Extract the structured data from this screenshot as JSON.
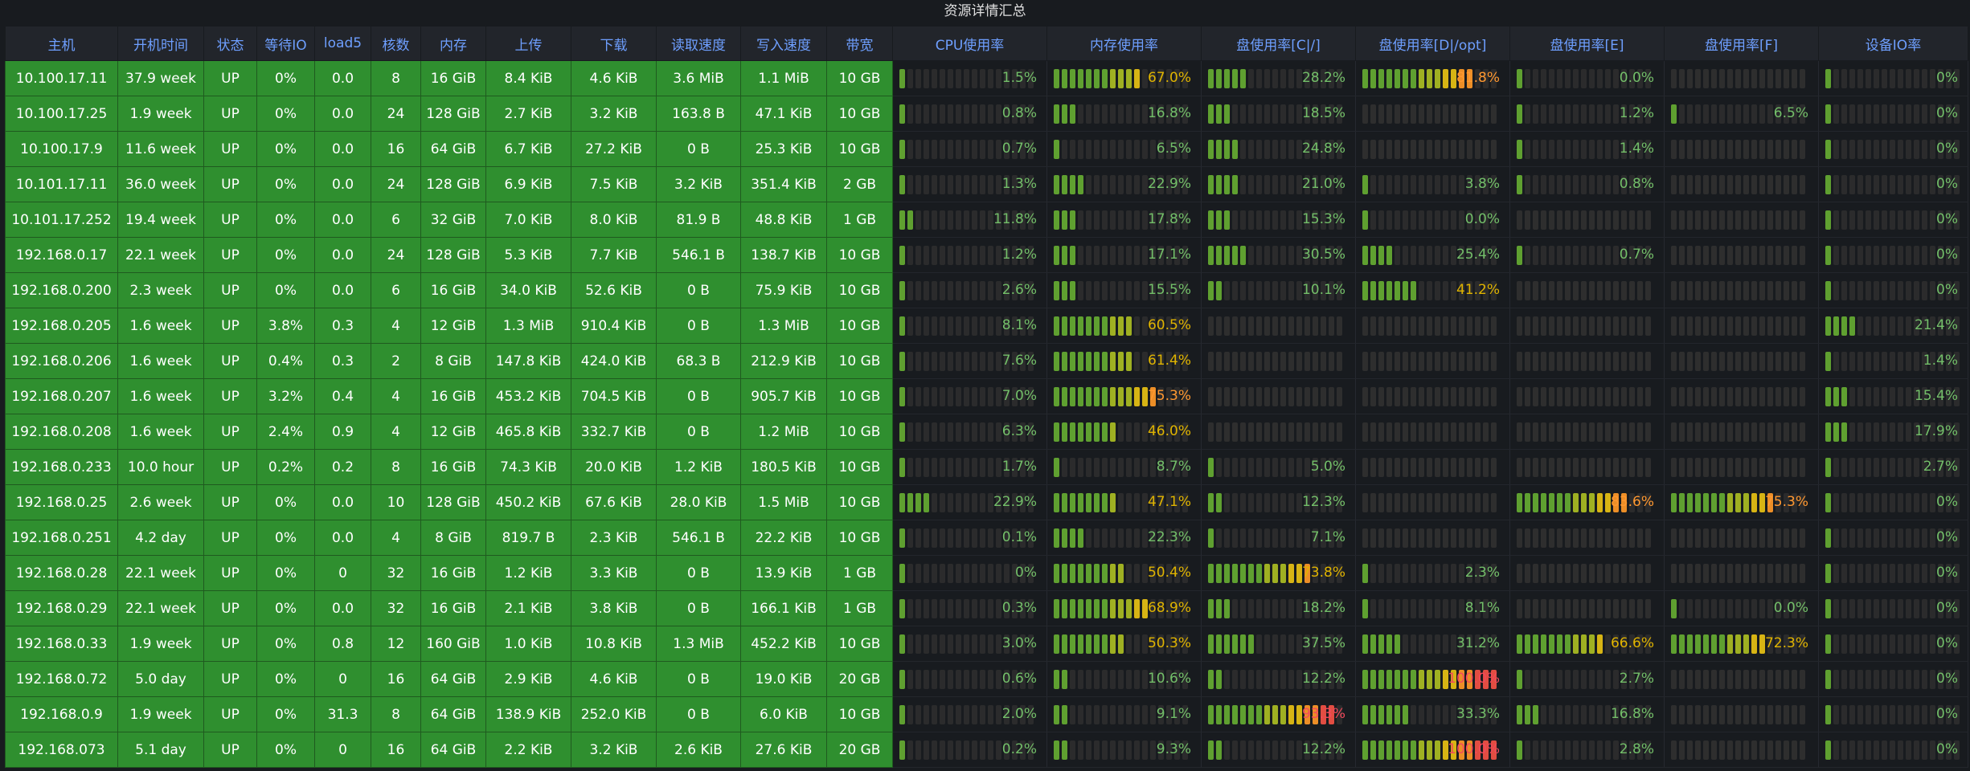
{
  "panel": {
    "title": "资源详情汇总"
  },
  "columns": [
    "主机",
    "开机时间",
    "状态",
    "等待IO",
    "load5",
    "核数",
    "内存",
    "上传",
    "下载",
    "读取速度",
    "写入速度",
    "带宽",
    "CPU使用率",
    "内存使用率",
    "盘使用率[C|/]",
    "盘使用率[D|/opt]",
    "盘使用率[E]",
    "盘使用率[F]",
    "设备IO率"
  ],
  "rows": [
    {
      "host": "10.100.17.11",
      "uptime": "37.9 week",
      "status": "UP",
      "iowait": "0%",
      "load5": "0.0",
      "cores": "8",
      "memory": "16 GiB",
      "upload": "8.4 KiB",
      "download": "4.6 KiB",
      "read": "3.6 MiB",
      "write": "1.1 MiB",
      "bandwidth": "10 GB",
      "cpu": "1.5%",
      "mem": "67.0%",
      "diskC": "28.2%",
      "diskD": "81.8%",
      "diskE": "0.0%",
      "diskF": "",
      "io": "0%"
    },
    {
      "host": "10.100.17.25",
      "uptime": "1.9 week",
      "status": "UP",
      "iowait": "0%",
      "load5": "0.0",
      "cores": "24",
      "memory": "128 GiB",
      "upload": "2.7 KiB",
      "download": "3.2 KiB",
      "read": "163.8 B",
      "write": "47.1 KiB",
      "bandwidth": "10 GB",
      "cpu": "0.8%",
      "mem": "16.8%",
      "diskC": "18.5%",
      "diskD": "",
      "diskE": "1.2%",
      "diskF": "6.5%",
      "io": "0%"
    },
    {
      "host": "10.100.17.9",
      "uptime": "11.6 week",
      "status": "UP",
      "iowait": "0%",
      "load5": "0.0",
      "cores": "16",
      "memory": "64 GiB",
      "upload": "6.7 KiB",
      "download": "27.2 KiB",
      "read": "0 B",
      "write": "25.3 KiB",
      "bandwidth": "10 GB",
      "cpu": "0.7%",
      "mem": "6.5%",
      "diskC": "24.8%",
      "diskD": "",
      "diskE": "1.4%",
      "diskF": "",
      "io": "0%"
    },
    {
      "host": "10.101.17.11",
      "uptime": "36.0 week",
      "status": "UP",
      "iowait": "0%",
      "load5": "0.0",
      "cores": "24",
      "memory": "128 GiB",
      "upload": "6.9 KiB",
      "download": "7.5 KiB",
      "read": "3.2 KiB",
      "write": "351.4 KiB",
      "bandwidth": "2 GB",
      "cpu": "1.3%",
      "mem": "22.9%",
      "diskC": "21.0%",
      "diskD": "3.8%",
      "diskE": "0.8%",
      "diskF": "",
      "io": "0%"
    },
    {
      "host": "10.101.17.252",
      "uptime": "19.4 week",
      "status": "UP",
      "iowait": "0%",
      "load5": "0.0",
      "cores": "6",
      "memory": "32 GiB",
      "upload": "7.0 KiB",
      "download": "8.0 KiB",
      "read": "81.9 B",
      "write": "48.8 KiB",
      "bandwidth": "1 GB",
      "cpu": "11.8%",
      "mem": "17.8%",
      "diskC": "15.3%",
      "diskD": "0.0%",
      "diskE": "",
      "diskF": "",
      "io": "0%"
    },
    {
      "host": "192.168.0.17",
      "uptime": "22.1 week",
      "status": "UP",
      "iowait": "0%",
      "load5": "0.0",
      "cores": "24",
      "memory": "128 GiB",
      "upload": "5.3 KiB",
      "download": "7.7 KiB",
      "read": "546.1 B",
      "write": "138.7 KiB",
      "bandwidth": "10 GB",
      "cpu": "1.2%",
      "mem": "17.1%",
      "diskC": "30.5%",
      "diskD": "25.4%",
      "diskE": "0.7%",
      "diskF": "",
      "io": "0%"
    },
    {
      "host": "192.168.0.200",
      "uptime": "2.3 week",
      "status": "UP",
      "iowait": "0%",
      "load5": "0.0",
      "cores": "6",
      "memory": "16 GiB",
      "upload": "34.0 KiB",
      "download": "52.6 KiB",
      "read": "0 B",
      "write": "75.9 KiB",
      "bandwidth": "10 GB",
      "cpu": "2.6%",
      "mem": "15.5%",
      "diskC": "10.1%",
      "diskD": "41.2%",
      "diskE": "",
      "diskF": "",
      "io": "0%"
    },
    {
      "host": "192.168.0.205",
      "uptime": "1.6 week",
      "status": "UP",
      "iowait": "3.8%",
      "load5": "0.3",
      "cores": "4",
      "memory": "12 GiB",
      "upload": "1.3 MiB",
      "download": "910.4 KiB",
      "read": "0 B",
      "write": "1.3 MiB",
      "bandwidth": "10 GB",
      "cpu": "8.1%",
      "mem": "60.5%",
      "diskC": "",
      "diskD": "",
      "diskE": "",
      "diskF": "",
      "io": "21.4%"
    },
    {
      "host": "192.168.0.206",
      "uptime": "1.6 week",
      "status": "UP",
      "iowait": "0.4%",
      "load5": "0.3",
      "cores": "2",
      "memory": "8 GiB",
      "upload": "147.8 KiB",
      "download": "424.0 KiB",
      "read": "68.3 B",
      "write": "212.9 KiB",
      "bandwidth": "10 GB",
      "cpu": "7.6%",
      "mem": "61.4%",
      "diskC": "",
      "diskD": "",
      "diskE": "",
      "diskF": "",
      "io": "1.4%"
    },
    {
      "host": "192.168.0.207",
      "uptime": "1.6 week",
      "status": "UP",
      "iowait": "3.2%",
      "load5": "0.4",
      "cores": "4",
      "memory": "16 GiB",
      "upload": "453.2 KiB",
      "download": "704.5 KiB",
      "read": "0 B",
      "write": "905.7 KiB",
      "bandwidth": "10 GB",
      "cpu": "7.0%",
      "mem": "75.3%",
      "diskC": "",
      "diskD": "",
      "diskE": "",
      "diskF": "",
      "io": "15.4%"
    },
    {
      "host": "192.168.0.208",
      "uptime": "1.6 week",
      "status": "UP",
      "iowait": "2.4%",
      "load5": "0.9",
      "cores": "4",
      "memory": "12 GiB",
      "upload": "465.8 KiB",
      "download": "332.7 KiB",
      "read": "0 B",
      "write": "1.2 MiB",
      "bandwidth": "10 GB",
      "cpu": "6.3%",
      "mem": "46.0%",
      "diskC": "",
      "diskD": "",
      "diskE": "",
      "diskF": "",
      "io": "17.9%"
    },
    {
      "host": "192.168.0.233",
      "uptime": "10.0 hour",
      "status": "UP",
      "iowait": "0.2%",
      "load5": "0.2",
      "cores": "8",
      "memory": "16 GiB",
      "upload": "74.3 KiB",
      "download": "20.0 KiB",
      "read": "1.2 KiB",
      "write": "180.5 KiB",
      "bandwidth": "10 GB",
      "cpu": "1.7%",
      "mem": "8.7%",
      "diskC": "5.0%",
      "diskD": "",
      "diskE": "",
      "diskF": "",
      "io": "2.7%"
    },
    {
      "host": "192.168.0.25",
      "uptime": "2.6 week",
      "status": "UP",
      "iowait": "0%",
      "load5": "0.0",
      "cores": "10",
      "memory": "128 GiB",
      "upload": "450.2 KiB",
      "download": "67.6 KiB",
      "read": "28.0 KiB",
      "write": "1.5 MiB",
      "bandwidth": "10 GB",
      "cpu": "22.9%",
      "mem": "47.1%",
      "diskC": "12.3%",
      "diskD": "",
      "diskE": "83.6%",
      "diskF": "75.3%",
      "io": "0%"
    },
    {
      "host": "192.168.0.251",
      "uptime": "4.2 day",
      "status": "UP",
      "iowait": "0%",
      "load5": "0.0",
      "cores": "4",
      "memory": "8 GiB",
      "upload": "819.7 B",
      "download": "2.3 KiB",
      "read": "546.1 B",
      "write": "22.2 KiB",
      "bandwidth": "10 GB",
      "cpu": "0.1%",
      "mem": "22.3%",
      "diskC": "7.1%",
      "diskD": "",
      "diskE": "",
      "diskF": "",
      "io": "0%"
    },
    {
      "host": "192.168.0.28",
      "uptime": "22.1 week",
      "status": "UP",
      "iowait": "0%",
      "load5": "0",
      "cores": "32",
      "memory": "16 GiB",
      "upload": "1.2 KiB",
      "download": "3.3 KiB",
      "read": "0 B",
      "write": "13.9 KiB",
      "bandwidth": "1 GB",
      "cpu": "0%",
      "mem": "50.4%",
      "diskC": "73.8%",
      "diskD": "2.3%",
      "diskE": "",
      "diskF": "",
      "io": "0%"
    },
    {
      "host": "192.168.0.29",
      "uptime": "22.1 week",
      "status": "UP",
      "iowait": "0%",
      "load5": "0.0",
      "cores": "32",
      "memory": "16 GiB",
      "upload": "2.1 KiB",
      "download": "3.8 KiB",
      "read": "0 B",
      "write": "166.1 KiB",
      "bandwidth": "1 GB",
      "cpu": "0.3%",
      "mem": "68.9%",
      "diskC": "18.2%",
      "diskD": "8.1%",
      "diskE": "",
      "diskF": "0.0%",
      "io": "0%"
    },
    {
      "host": "192.168.0.33",
      "uptime": "1.9 week",
      "status": "UP",
      "iowait": "0%",
      "load5": "0.8",
      "cores": "12",
      "memory": "160 GiB",
      "upload": "1.0 KiB",
      "download": "10.8 KiB",
      "read": "1.3 MiB",
      "write": "452.2 KiB",
      "bandwidth": "10 GB",
      "cpu": "3.0%",
      "mem": "50.3%",
      "diskC": "37.5%",
      "diskD": "31.2%",
      "diskE": "66.6%",
      "diskF": "72.3%",
      "io": "0%"
    },
    {
      "host": "192.168.0.72",
      "uptime": "5.0 day",
      "status": "UP",
      "iowait": "0%",
      "load5": "0",
      "cores": "16",
      "memory": "64 GiB",
      "upload": "2.9 KiB",
      "download": "4.6 KiB",
      "read": "0 B",
      "write": "19.0 KiB",
      "bandwidth": "20 GB",
      "cpu": "0.6%",
      "mem": "10.6%",
      "diskC": "12.2%",
      "diskD": "100.0%",
      "diskE": "2.7%",
      "diskF": "",
      "io": "0%"
    },
    {
      "host": "192.168.0.9",
      "uptime": "1.9 week",
      "status": "UP",
      "iowait": "0%",
      "load5": "31.3",
      "cores": "8",
      "memory": "64 GiB",
      "upload": "138.9 KiB",
      "download": "252.0 KiB",
      "read": "0 B",
      "write": "6.0 KiB",
      "bandwidth": "10 GB",
      "cpu": "2.0%",
      "mem": "9.1%",
      "diskC": "93.3%",
      "diskD": "33.3%",
      "diskE": "16.8%",
      "diskF": "",
      "io": "0%"
    },
    {
      "host": "192.168.073",
      "uptime": "5.1 day",
      "status": "UP",
      "iowait": "0%",
      "load5": "0",
      "cores": "16",
      "memory": "64 GiB",
      "upload": "2.2 KiB",
      "download": "3.2 KiB",
      "read": "2.6 KiB",
      "write": "27.6 KiB",
      "bandwidth": "20 GB",
      "cpu": "0.2%",
      "mem": "9.3%",
      "diskC": "12.2%",
      "diskD": "100.0%",
      "diskE": "2.8%",
      "diskF": "",
      "io": "0%"
    }
  ],
  "colors": {
    "header_text": "#6e9fff",
    "cell_green": "#2f8f2f",
    "gauge_off": "#2e2e2e",
    "value_green": "#73bf69",
    "value_yellow": "#e0b400",
    "value_orange": "#ff9830",
    "value_red": "#f2495c"
  }
}
